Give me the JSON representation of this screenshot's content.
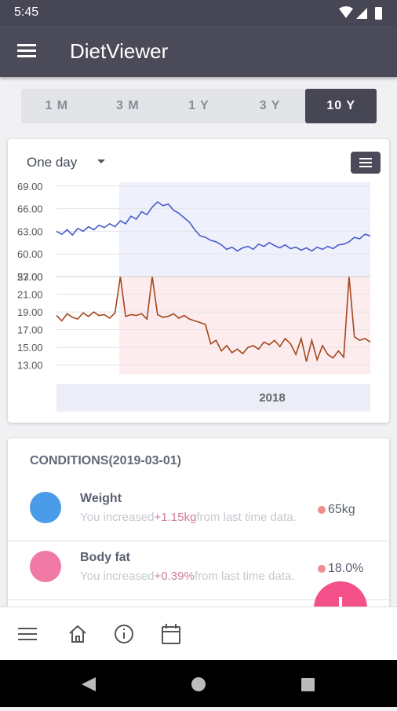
{
  "status_bar": {
    "time": "5:45"
  },
  "app_bar": {
    "title": "DietViewer"
  },
  "range_tabs": {
    "labels": [
      "1 M",
      "3 M",
      "1 Y",
      "3 Y",
      "10 Y"
    ],
    "selected": 4
  },
  "chart_card": {
    "period": "One day",
    "x_label": "2018"
  },
  "chart_data": [
    {
      "type": "line",
      "name": "weight",
      "color": "#4a5bc9",
      "ylim": [
        57,
        69.5
      ],
      "yticks": [
        {
          "value": 57,
          "label": "57.00"
        },
        {
          "value": 60,
          "label": "60.00"
        },
        {
          "value": 63,
          "label": "63.00"
        },
        {
          "value": 66,
          "label": "66.00"
        },
        {
          "value": 69,
          "label": "69.00"
        }
      ],
      "values": [
        63.0,
        62.6,
        63.2,
        62.5,
        63.4,
        63.0,
        63.6,
        63.2,
        63.8,
        63.5,
        64.0,
        63.6,
        64.4,
        64.0,
        65.0,
        64.6,
        65.6,
        65.2,
        66.2,
        66.9,
        66.4,
        66.6,
        65.8,
        65.4,
        64.8,
        64.2,
        63.2,
        62.4,
        62.2,
        61.8,
        61.6,
        61.2,
        60.6,
        60.9,
        60.4,
        60.8,
        61.0,
        60.6,
        61.3,
        61.0,
        61.5,
        61.1,
        60.8,
        61.2,
        60.7,
        60.9,
        60.5,
        60.8,
        60.4,
        60.9,
        60.6,
        61.0,
        60.7,
        61.2,
        61.3,
        61.6,
        62.2,
        62.0,
        62.6,
        62.4
      ]
    },
    {
      "type": "line",
      "name": "body-fat",
      "color": "#a3471c",
      "ylim": [
        12,
        23
      ],
      "yticks": [
        {
          "value": 13,
          "label": "13.00"
        },
        {
          "value": 15,
          "label": "15.00"
        },
        {
          "value": 17,
          "label": "17.00"
        },
        {
          "value": 19,
          "label": "19.00"
        },
        {
          "value": 21,
          "label": "21.00"
        },
        {
          "value": 23,
          "label": "23.00"
        }
      ],
      "values": [
        18.6,
        18.0,
        18.8,
        18.4,
        18.2,
        18.9,
        18.5,
        19.0,
        18.6,
        18.7,
        18.3,
        18.9,
        23.0,
        18.5,
        18.7,
        18.6,
        18.8,
        18.2,
        23.0,
        18.7,
        18.4,
        18.5,
        18.8,
        18.3,
        18.6,
        18.2,
        18.0,
        17.8,
        17.6,
        15.4,
        15.8,
        14.6,
        15.2,
        14.4,
        14.8,
        14.3,
        15.0,
        15.2,
        14.8,
        15.6,
        15.3,
        15.8,
        15.1,
        16.0,
        15.4,
        14.2,
        16.0,
        13.4,
        15.8,
        13.6,
        15.2,
        14.2,
        13.8,
        14.6,
        13.9,
        23.0,
        16.2,
        15.8,
        16.0,
        15.6
      ]
    }
  ],
  "conditions": {
    "title": "CONDITIONS(2019-03-01)",
    "items": [
      {
        "name": "Weight",
        "prefix": "You increased",
        "change": "+1.15kg",
        "suffix": "from last time data.",
        "value": "65kg"
      },
      {
        "name": "Body fat",
        "prefix": "You increased",
        "change": "+0.39%",
        "suffix": "from last time data.",
        "value": "18.0%"
      }
    ]
  }
}
